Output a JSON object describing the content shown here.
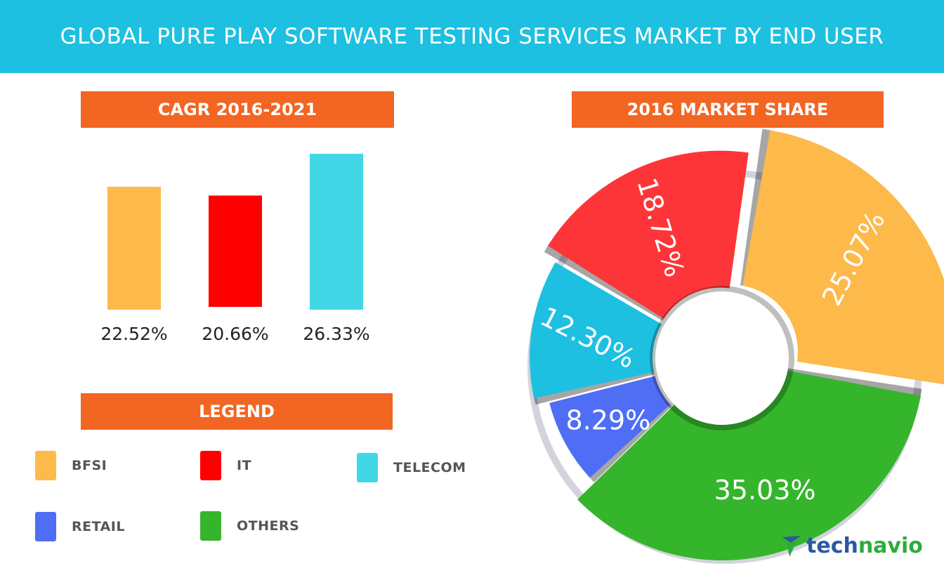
{
  "title": "GLOBAL PURE PLAY SOFTWARE TESTING SERVICES MARKET BY END USER",
  "sections": {
    "cagr": "CAGR 2016-2021",
    "legend": "LEGEND",
    "market_share": "2016 MARKET SHARE"
  },
  "legend": [
    {
      "label": "BFSI",
      "color": "#fdb94a"
    },
    {
      "label": "IT",
      "color": "#fe0000"
    },
    {
      "label": "TELECOM",
      "color": "#41d7e7"
    },
    {
      "label": "RETAIL",
      "color": "#4f6ef5"
    },
    {
      "label": "OTHERS",
      "color": "#35b52b"
    }
  ],
  "chart_data": [
    {
      "type": "bar",
      "title": "CAGR 2016-2021",
      "categories": [
        "BFSI",
        "IT",
        "TELECOM"
      ],
      "values": [
        22.52,
        20.66,
        26.33
      ],
      "labels": [
        "22.52%",
        "20.66%",
        "26.33%"
      ],
      "colors": [
        "#fdb94a",
        "#fe0000",
        "#41d7e7"
      ],
      "unit": "%",
      "grid": false
    },
    {
      "type": "pie",
      "title": "2016 MARKET SHARE",
      "categories": [
        "BFSI",
        "OTHERS",
        "RETAIL",
        "TELECOM",
        "IT"
      ],
      "values": [
        25.07,
        35.03,
        8.29,
        12.3,
        18.72
      ],
      "labels": [
        "25.07%",
        "35.03%",
        "8.29%",
        "12.30%",
        "18.72%"
      ],
      "colors": [
        "#fdb94a",
        "#35b52b",
        "#4f6ef5",
        "#1dc0e0",
        "#fe3538"
      ],
      "unit": "%"
    }
  ],
  "brand": {
    "part1": "tech",
    "part2": "navio"
  }
}
